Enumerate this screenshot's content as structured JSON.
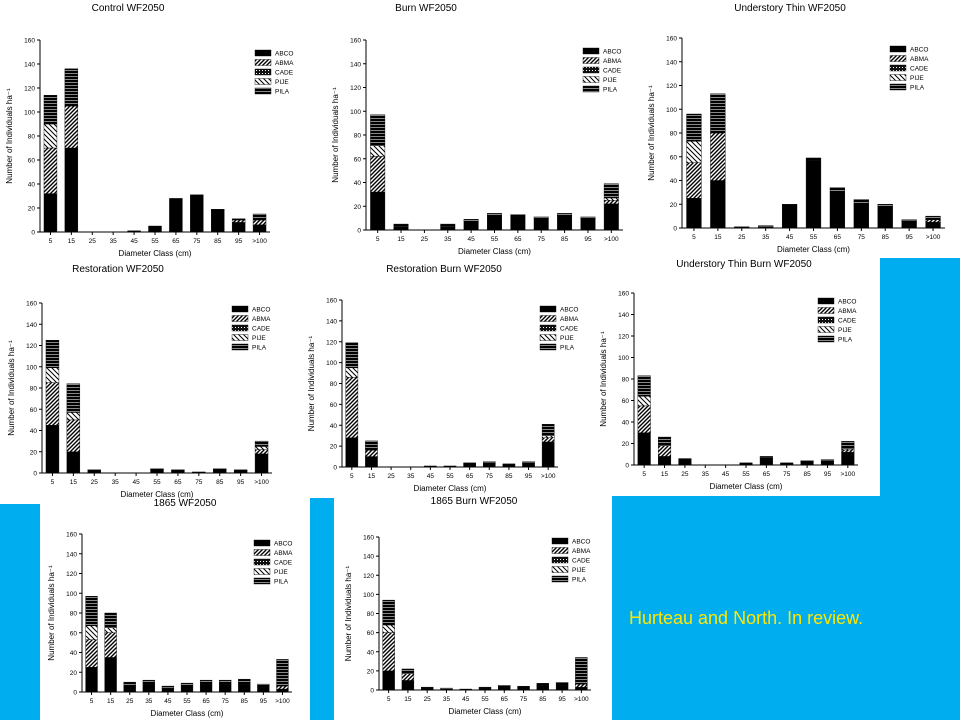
{
  "footer": {
    "note": "Hurteau and North.  In review."
  },
  "colors": {
    "background": "#00aeef",
    "footer_text": "#ffe600",
    "ABCO": "#000000",
    "ABMA": "#555555",
    "CADE": "#222222",
    "PIJE": "#ffffff",
    "PILA": "#333333"
  },
  "chart_data": [
    {
      "type": "bar",
      "stacked": true,
      "title": "Control WF2050",
      "xlabel": "Diameter Class (cm)",
      "ylabel": "Number of Individuals ha⁻¹",
      "ylim": [
        0,
        160
      ],
      "yticks": [
        0,
        20,
        40,
        60,
        80,
        100,
        120,
        140,
        160
      ],
      "legend_position": "top-right",
      "categories": [
        "5",
        "15",
        "25",
        "35",
        "45",
        "55",
        "65",
        "75",
        "85",
        "95",
        ">100"
      ],
      "series": [
        {
          "name": "ABCO",
          "values": [
            32,
            70,
            0,
            0,
            1,
            5,
            28,
            31,
            19,
            8,
            6
          ]
        },
        {
          "name": "ABMA",
          "values": [
            38,
            35,
            0,
            0,
            0,
            0,
            0,
            0,
            0,
            2,
            4
          ]
        },
        {
          "name": "CADE",
          "values": [
            0,
            0,
            0,
            0,
            0,
            0,
            0,
            0,
            0,
            0,
            0
          ]
        },
        {
          "name": "PIJE",
          "values": [
            20,
            0,
            0,
            0,
            0,
            0,
            0,
            0,
            0,
            0,
            0
          ]
        },
        {
          "name": "PILA",
          "values": [
            24,
            31,
            0,
            0,
            0,
            0,
            0,
            0,
            0,
            1,
            5
          ]
        }
      ]
    },
    {
      "type": "bar",
      "stacked": true,
      "title": "Burn WF2050",
      "xlabel": "Diameter Class (cm)",
      "ylabel": "Number of Individuals ha⁻¹",
      "ylim": [
        0,
        160
      ],
      "yticks": [
        0,
        20,
        40,
        60,
        80,
        100,
        120,
        140,
        160
      ],
      "legend_position": "top-right",
      "categories": [
        "5",
        "15",
        "25",
        "35",
        "45",
        "55",
        "65",
        "75",
        "85",
        "95",
        ">100"
      ],
      "series": [
        {
          "name": "ABCO",
          "values": [
            32,
            3,
            0,
            3,
            7,
            12,
            11,
            10,
            12,
            10,
            22
          ]
        },
        {
          "name": "ABMA",
          "values": [
            30,
            0,
            0,
            0,
            0,
            0,
            0,
            0,
            0,
            0,
            3
          ]
        },
        {
          "name": "CADE",
          "values": [
            0,
            0,
            0,
            0,
            0,
            0,
            0,
            0,
            0,
            0,
            0
          ]
        },
        {
          "name": "PIJE",
          "values": [
            9,
            0,
            0,
            0,
            0,
            0,
            0,
            0,
            0,
            0,
            2
          ]
        },
        {
          "name": "PILA",
          "values": [
            26,
            2,
            0,
            2,
            2,
            2,
            2,
            1,
            2,
            1,
            12
          ]
        }
      ]
    },
    {
      "type": "bar",
      "stacked": true,
      "title": "Understory Thin WF2050",
      "xlabel": "Diameter Class (cm)",
      "ylabel": "Number of Individuals ha⁻¹",
      "ylim": [
        0,
        160
      ],
      "yticks": [
        0,
        20,
        40,
        60,
        80,
        100,
        120,
        140,
        160
      ],
      "legend_position": "top-right",
      "categories": [
        "5",
        "15",
        "25",
        "35",
        "45",
        "55",
        "65",
        "75",
        "85",
        "95",
        ">100"
      ],
      "series": [
        {
          "name": "ABCO",
          "values": [
            25,
            40,
            1,
            1,
            20,
            57,
            30,
            20,
            18,
            6,
            5
          ]
        },
        {
          "name": "ABMA",
          "values": [
            30,
            40,
            0,
            0,
            0,
            0,
            0,
            0,
            0,
            0,
            2
          ]
        },
        {
          "name": "CADE",
          "values": [
            0,
            0,
            0,
            0,
            0,
            0,
            0,
            0,
            0,
            0,
            0
          ]
        },
        {
          "name": "PIJE",
          "values": [
            18,
            0,
            0,
            0,
            0,
            0,
            0,
            0,
            0,
            0,
            0
          ]
        },
        {
          "name": "PILA",
          "values": [
            23,
            33,
            0,
            1,
            0,
            2,
            4,
            4,
            2,
            1,
            3
          ]
        }
      ]
    },
    {
      "type": "bar",
      "stacked": true,
      "title": "Restoration WF2050",
      "xlabel": "Diameter Class (cm)",
      "ylabel": "Number of Individuals ha⁻¹",
      "ylim": [
        0,
        160
      ],
      "yticks": [
        0,
        20,
        40,
        60,
        80,
        100,
        120,
        140,
        160
      ],
      "legend_position": "top-right",
      "categories": [
        "5",
        "15",
        "25",
        "35",
        "45",
        "55",
        "65",
        "75",
        "85",
        "95",
        ">100"
      ],
      "series": [
        {
          "name": "ABCO",
          "values": [
            45,
            20,
            3,
            0,
            0,
            3,
            2,
            1,
            3,
            2,
            18
          ]
        },
        {
          "name": "ABMA",
          "values": [
            40,
            30,
            0,
            0,
            0,
            0,
            0,
            0,
            0,
            0,
            4
          ]
        },
        {
          "name": "CADE",
          "values": [
            0,
            0,
            0,
            0,
            0,
            0,
            0,
            0,
            0,
            0,
            0
          ]
        },
        {
          "name": "PIJE",
          "values": [
            14,
            7,
            0,
            0,
            0,
            0,
            0,
            0,
            0,
            0,
            3
          ]
        },
        {
          "name": "PILA",
          "values": [
            26,
            27,
            0,
            0,
            0,
            1,
            1,
            0,
            1,
            1,
            5
          ]
        }
      ]
    },
    {
      "type": "bar",
      "stacked": true,
      "title": "Restoration Burn WF2050",
      "xlabel": "Diameter Class (cm)",
      "ylabel": "Number of Individuals ha⁻¹",
      "ylim": [
        0,
        160
      ],
      "yticks": [
        0,
        20,
        40,
        60,
        80,
        100,
        120,
        140,
        160
      ],
      "legend_position": "top-right",
      "categories": [
        "5",
        "15",
        "25",
        "35",
        "45",
        "55",
        "65",
        "75",
        "85",
        "95",
        ">100"
      ],
      "series": [
        {
          "name": "ABCO",
          "values": [
            28,
            10,
            0,
            0,
            0,
            1,
            3,
            4,
            2,
            4,
            24
          ]
        },
        {
          "name": "ABMA",
          "values": [
            58,
            6,
            0,
            0,
            0,
            0,
            0,
            0,
            0,
            0,
            4
          ]
        },
        {
          "name": "CADE",
          "values": [
            0,
            0,
            0,
            0,
            0,
            0,
            0,
            0,
            0,
            0,
            0
          ]
        },
        {
          "name": "PIJE",
          "values": [
            9,
            0,
            0,
            0,
            0,
            0,
            0,
            0,
            0,
            0,
            2
          ]
        },
        {
          "name": "PILA",
          "values": [
            24,
            9,
            0,
            0,
            1,
            0,
            1,
            1,
            1,
            1,
            11
          ]
        }
      ]
    },
    {
      "type": "bar",
      "stacked": true,
      "title": "Understory Thin Burn WF2050",
      "xlabel": "Diameter Class (cm)",
      "ylabel": "Number of Individuals ha⁻¹",
      "ylim": [
        0,
        160
      ],
      "yticks": [
        0,
        20,
        40,
        60,
        80,
        100,
        120,
        140,
        160
      ],
      "legend_position": "top-right",
      "categories": [
        "5",
        "15",
        "25",
        "35",
        "45",
        "55",
        "65",
        "75",
        "85",
        "95",
        ">100"
      ],
      "series": [
        {
          "name": "ABCO",
          "values": [
            30,
            8,
            5,
            0,
            0,
            2,
            7,
            2,
            3,
            4,
            12
          ]
        },
        {
          "name": "ABMA",
          "values": [
            25,
            10,
            0,
            0,
            0,
            0,
            0,
            0,
            0,
            0,
            2
          ]
        },
        {
          "name": "CADE",
          "values": [
            0,
            0,
            0,
            0,
            0,
            0,
            0,
            0,
            0,
            0,
            0
          ]
        },
        {
          "name": "PIJE",
          "values": [
            9,
            0,
            0,
            0,
            0,
            0,
            0,
            0,
            0,
            0,
            1
          ]
        },
        {
          "name": "PILA",
          "values": [
            19,
            8,
            1,
            0,
            0,
            0,
            1,
            0,
            1,
            1,
            7
          ]
        }
      ]
    },
    {
      "type": "bar",
      "stacked": true,
      "title": "1865 WF2050",
      "xlabel": "Diameter Class (cm)",
      "ylabel": "Number of Individuals ha⁻¹",
      "ylim": [
        0,
        160
      ],
      "yticks": [
        0,
        20,
        40,
        60,
        80,
        100,
        120,
        140,
        160
      ],
      "legend_position": "top-right",
      "categories": [
        "5",
        "15",
        "25",
        "35",
        "45",
        "55",
        "65",
        "75",
        "85",
        "95",
        ">100"
      ],
      "series": [
        {
          "name": "ABCO",
          "values": [
            25,
            35,
            6,
            8,
            4,
            6,
            8,
            8,
            8,
            5,
            3
          ]
        },
        {
          "name": "ABMA",
          "values": [
            28,
            25,
            0,
            0,
            0,
            0,
            0,
            0,
            0,
            0,
            3
          ]
        },
        {
          "name": "CADE",
          "values": [
            0,
            0,
            0,
            0,
            0,
            0,
            0,
            0,
            0,
            0,
            0
          ]
        },
        {
          "name": "PIJE",
          "values": [
            14,
            5,
            0,
            0,
            0,
            0,
            0,
            0,
            0,
            0,
            0
          ]
        },
        {
          "name": "PILA",
          "values": [
            30,
            15,
            4,
            4,
            2,
            3,
            4,
            4,
            5,
            3,
            27
          ]
        }
      ]
    },
    {
      "type": "bar",
      "stacked": true,
      "title": "1865 Burn WF2050",
      "xlabel": "Diameter Class (cm)",
      "ylabel": "Number of Individuals ha⁻¹",
      "ylim": [
        0,
        160
      ],
      "yticks": [
        0,
        20,
        40,
        60,
        80,
        100,
        120,
        140,
        160
      ],
      "legend_position": "top-right",
      "categories": [
        "5",
        "15",
        "25",
        "35",
        "45",
        "55",
        "65",
        "75",
        "85",
        "95",
        ">100"
      ],
      "series": [
        {
          "name": "ABCO",
          "values": [
            20,
            10,
            2,
            1,
            1,
            2,
            3,
            3,
            5,
            5,
            3
          ]
        },
        {
          "name": "ABMA",
          "values": [
            40,
            7,
            0,
            0,
            0,
            0,
            0,
            0,
            0,
            0,
            3
          ]
        },
        {
          "name": "CADE",
          "values": [
            0,
            0,
            0,
            0,
            0,
            0,
            0,
            0,
            0,
            0,
            0
          ]
        },
        {
          "name": "PIJE",
          "values": [
            8,
            0,
            0,
            0,
            0,
            0,
            0,
            0,
            0,
            0,
            0
          ]
        },
        {
          "name": "PILA",
          "values": [
            26,
            5,
            1,
            1,
            0,
            1,
            2,
            1,
            2,
            3,
            28
          ]
        }
      ]
    }
  ]
}
